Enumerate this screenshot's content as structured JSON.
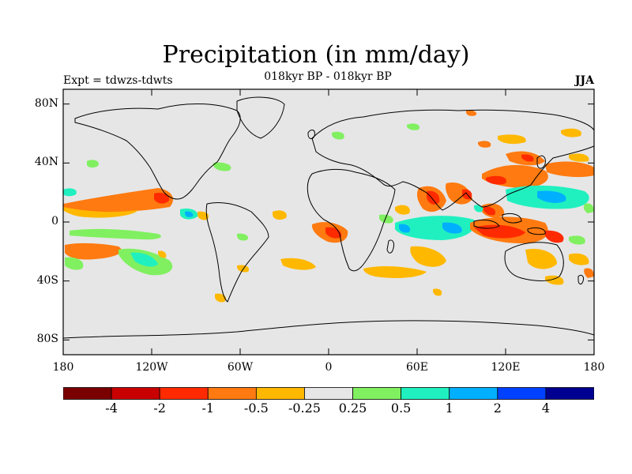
{
  "header": {
    "title": "Precipitation (in mm/day)",
    "subtitle": "018kyr BP - 018kyr BP",
    "left_label": "Expt = tdwzs-tdwts",
    "right_label": "JJA"
  },
  "map": {
    "y_ticks": [
      {
        "label": "80N",
        "lat": 80
      },
      {
        "label": "40N",
        "lat": 40
      },
      {
        "label": "0",
        "lat": 0
      },
      {
        "label": "40S",
        "lat": -40
      },
      {
        "label": "80S",
        "lat": -80
      }
    ],
    "x_ticks": [
      {
        "label": "180",
        "lon": -180
      },
      {
        "label": "120W",
        "lon": -120
      },
      {
        "label": "60W",
        "lon": -60
      },
      {
        "label": "0",
        "lon": 0
      },
      {
        "label": "60E",
        "lon": 60
      },
      {
        "label": "120E",
        "lon": 120
      },
      {
        "label": "180",
        "lon": 180
      }
    ],
    "background_color": "#e6e6e6"
  },
  "colorbar": {
    "colors": [
      "#7a0000",
      "#c80000",
      "#ff2a00",
      "#ff7a10",
      "#ffb800",
      "#e6e6e6",
      "#80f060",
      "#20f0c0",
      "#00b0ff",
      "#0040ff",
      "#000090"
    ],
    "labels": [
      "-4",
      "-2",
      "-1",
      "-0.5",
      "-0.25",
      "0.25",
      "0.5",
      "1",
      "2",
      "4"
    ]
  }
}
